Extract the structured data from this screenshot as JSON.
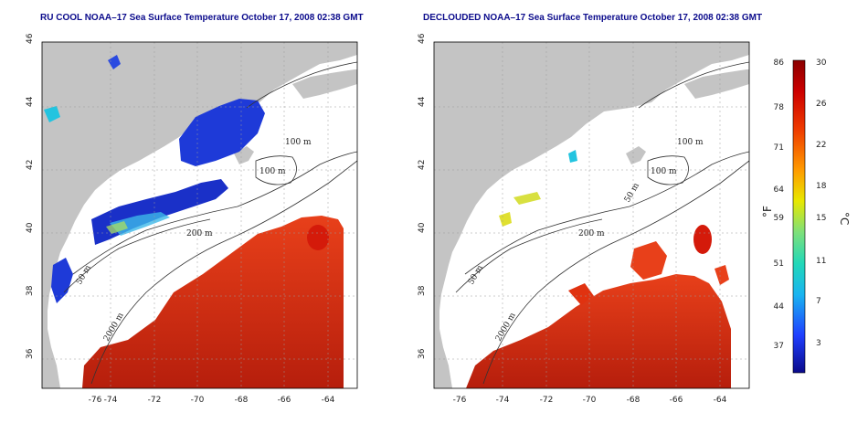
{
  "left_panel": {
    "title": "RU COOL NOAA–17 Sea Surface Temperature October 17, 2008 02:38 GMT",
    "y_ticks": [
      "46",
      "44",
      "42",
      "40",
      "38",
      "36"
    ],
    "x_ticks": [
      "-76",
      "-74",
      "-72",
      "-70",
      "-68",
      "-66",
      "-64"
    ],
    "contour_labels": [
      "100 m",
      "100 m",
      "200 m",
      "50 m",
      "2000 m"
    ]
  },
  "right_panel": {
    "title": "DECLOUDED NOAA–17 Sea Surface Temperature October 17, 2008 02:38 GMT",
    "y_ticks": [
      "46",
      "44",
      "42",
      "40",
      "38",
      "36"
    ],
    "x_ticks": [
      "-76",
      "-74",
      "-72",
      "-70",
      "-68",
      "-66",
      "-64"
    ],
    "contour_labels": [
      "100 m",
      "100 m",
      "50 m",
      "200 m",
      "50 m",
      "2000 m"
    ]
  },
  "colorbar": {
    "fahrenheit_ticks": [
      "86",
      "78",
      "71",
      "64",
      "59",
      "51",
      "44",
      "37"
    ],
    "celsius_ticks": [
      "30",
      "26",
      "22",
      "18",
      "15",
      "11",
      "7",
      "3"
    ],
    "unit_f": "°F",
    "unit_c": "°C",
    "colors": [
      "#0a0a8a",
      "#1f3fff",
      "#19b4f0",
      "#22d8b8",
      "#7ee07a",
      "#e8e800",
      "#ff9a00",
      "#ee3a00",
      "#cc0000",
      "#8a0000"
    ]
  },
  "colors": {
    "land": "#c4c4c4",
    "ocean_background": "#ffffff",
    "warm_water": "#e8401a",
    "cold_water": "#1e3ad8",
    "title_text": "#0b0b8c"
  }
}
